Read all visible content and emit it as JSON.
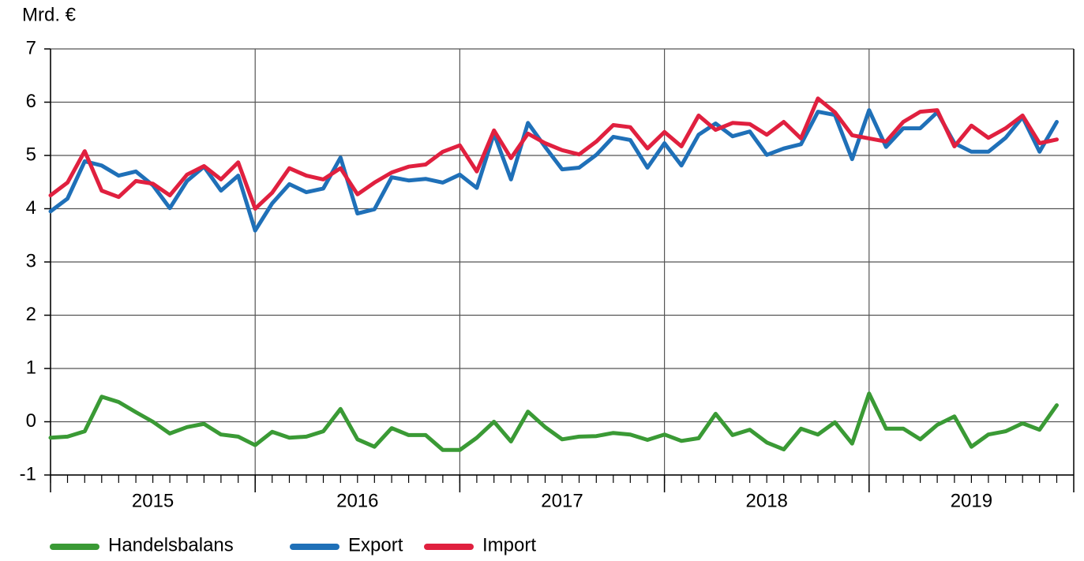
{
  "chart_data": {
    "type": "line",
    "y_label": "Mrd. €",
    "x": [
      2015,
      2015.083,
      2015.167,
      2015.25,
      2015.333,
      2015.417,
      2015.5,
      2015.583,
      2015.667,
      2015.75,
      2015.833,
      2015.917,
      2016,
      2016.083,
      2016.167,
      2016.25,
      2016.333,
      2016.417,
      2016.5,
      2016.583,
      2016.667,
      2016.75,
      2016.833,
      2016.917,
      2017,
      2017.083,
      2017.167,
      2017.25,
      2017.333,
      2017.417,
      2017.5,
      2017.583,
      2017.667,
      2017.75,
      2017.833,
      2017.917,
      2018,
      2018.083,
      2018.167,
      2018.25,
      2018.333,
      2018.417,
      2018.5,
      2018.583,
      2018.667,
      2018.75,
      2018.833,
      2018.917,
      2019,
      2019.083,
      2019.167,
      2019.25,
      2019.333,
      2019.417,
      2019.5,
      2019.583,
      2019.667,
      2019.75,
      2019.833,
      2019.917
    ],
    "series": [
      {
        "name": "Handelsbalans",
        "color": "#3a9a35",
        "values": [
          -0.3,
          -0.28,
          -0.18,
          0.47,
          0.37,
          0.18,
          0.0,
          -0.22,
          -0.1,
          -0.04,
          -0.24,
          -0.28,
          -0.44,
          -0.19,
          -0.3,
          -0.28,
          -0.18,
          0.24,
          -0.33,
          -0.47,
          -0.12,
          -0.25,
          -0.25,
          -0.53,
          -0.53,
          -0.3,
          0.0,
          -0.37,
          0.19,
          -0.1,
          -0.33,
          -0.28,
          -0.27,
          -0.21,
          -0.24,
          -0.34,
          -0.24,
          -0.36,
          -0.31,
          0.15,
          -0.25,
          -0.15,
          -0.39,
          -0.52,
          -0.13,
          -0.24,
          -0.01,
          -0.41,
          0.53,
          -0.13,
          -0.13,
          -0.33,
          -0.06,
          0.1,
          -0.47,
          -0.24,
          -0.18,
          -0.03,
          -0.15,
          0.31
        ]
      },
      {
        "name": "Export",
        "color": "#1f70b8",
        "values": [
          3.95,
          4.19,
          4.89,
          4.81,
          4.62,
          4.7,
          4.44,
          4.01,
          4.52,
          4.79,
          4.34,
          4.62,
          3.59,
          4.1,
          4.46,
          4.31,
          4.38,
          4.96,
          3.91,
          3.99,
          4.59,
          4.53,
          4.56,
          4.49,
          4.64,
          4.39,
          5.41,
          4.55,
          5.61,
          5.16,
          4.74,
          4.77,
          5.01,
          5.35,
          5.29,
          4.77,
          5.23,
          4.81,
          5.39,
          5.6,
          5.36,
          5.45,
          5.01,
          5.13,
          5.21,
          5.82,
          5.76,
          4.93,
          5.85,
          5.16,
          5.51,
          5.51,
          5.81,
          5.23,
          5.07,
          5.07,
          5.33,
          5.72,
          5.07,
          5.63
        ]
      },
      {
        "name": "Import",
        "color": "#e0203f",
        "values": [
          4.25,
          4.49,
          5.08,
          4.34,
          4.22,
          4.52,
          4.47,
          4.25,
          4.64,
          4.8,
          4.55,
          4.87,
          4.0,
          4.3,
          4.76,
          4.62,
          4.55,
          4.76,
          4.27,
          4.49,
          4.68,
          4.79,
          4.83,
          5.07,
          5.19,
          4.7,
          5.47,
          4.95,
          5.41,
          5.23,
          5.1,
          5.02,
          5.26,
          5.57,
          5.53,
          5.13,
          5.44,
          5.17,
          5.75,
          5.48,
          5.61,
          5.59,
          5.39,
          5.63,
          5.32,
          6.07,
          5.81,
          5.38,
          5.32,
          5.26,
          5.63,
          5.82,
          5.85,
          5.17,
          5.56,
          5.33,
          5.51,
          5.75,
          5.23,
          5.3
        ]
      }
    ],
    "xlim": [
      2015,
      2020
    ],
    "xticks": [
      2015,
      2016,
      2017,
      2018,
      2019
    ],
    "ylim": [
      -1,
      7
    ],
    "yticks": [
      -1,
      0,
      1,
      2,
      3,
      4,
      5,
      6,
      7
    ],
    "grid": true,
    "legend": "bottom"
  }
}
